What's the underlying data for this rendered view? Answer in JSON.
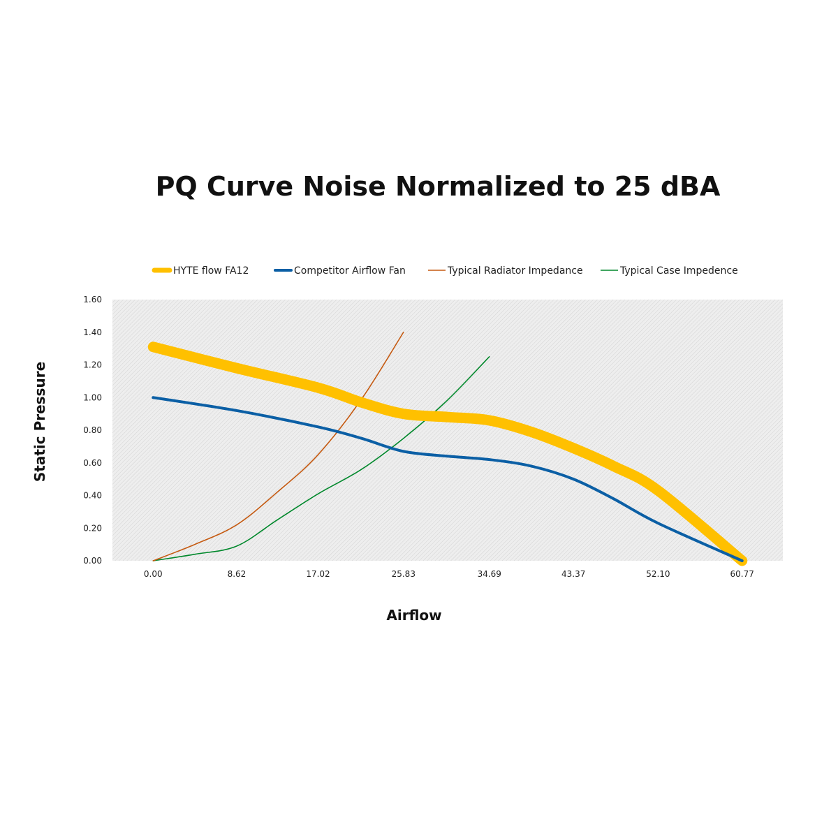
{
  "colors": {
    "hyte": "#FFC000",
    "competitor": "#0B5FA5",
    "radiator": "#C55A11",
    "case": "#00882B",
    "plot_background": "#EEEEEE",
    "hatch": "#CFCFCF",
    "text": "#111111"
  },
  "chart_data": {
    "type": "line",
    "title": "PQ Curve Noise Normalized to 25 dBA",
    "xlabel": "Airflow",
    "ylabel": "Static Pressure",
    "xlim": [
      -4.2,
      64.97
    ],
    "ylim": [
      0,
      1.6
    ],
    "x_ticks": [
      0.0,
      8.62,
      17.02,
      25.83,
      34.69,
      43.37,
      52.1,
      60.77
    ],
    "x_tick_labels": [
      "0.00",
      "8.62",
      "17.02",
      "25.83",
      "34.69",
      "43.37",
      "52.10",
      "60.77"
    ],
    "y_ticks": [
      0.0,
      0.2,
      0.4,
      0.6,
      0.8,
      1.0,
      1.2,
      1.4,
      1.6
    ],
    "y_tick_labels": [
      "0.00",
      "0.20",
      "0.40",
      "0.60",
      "0.80",
      "1.00",
      "1.20",
      "1.40",
      "1.60"
    ],
    "legend_position": "top",
    "grid": false,
    "series": [
      {
        "name": "HYTE flow FA12",
        "key": "hyte",
        "style": "thick",
        "x": [
          0.0,
          8.62,
          17.02,
          21.5,
          25.83,
          30.5,
          34.69,
          39.0,
          43.37,
          47.5,
          52.1,
          60.77
        ],
        "y": [
          1.31,
          1.18,
          1.06,
          0.97,
          0.9,
          0.88,
          0.86,
          0.79,
          0.69,
          0.58,
          0.43,
          0.0
        ]
      },
      {
        "name": "Competitor Airflow Fan",
        "key": "competitor",
        "style": "medium",
        "x": [
          0.0,
          8.62,
          17.02,
          21.5,
          25.83,
          30.5,
          34.69,
          39.0,
          43.37,
          47.5,
          52.1,
          60.77
        ],
        "y": [
          1.0,
          0.92,
          0.82,
          0.75,
          0.67,
          0.64,
          0.62,
          0.58,
          0.5,
          0.38,
          0.23,
          0.0
        ]
      },
      {
        "name": "Typical Radiator Impedance",
        "key": "radiator",
        "style": "thin",
        "x": [
          0.0,
          4.3,
          8.62,
          12.8,
          17.02,
          21.5,
          25.83
        ],
        "y": [
          0.0,
          0.1,
          0.22,
          0.42,
          0.65,
          0.99,
          1.4
        ]
      },
      {
        "name": "Typical Case Impedence",
        "key": "case",
        "style": "thin",
        "x": [
          0.0,
          4.3,
          8.62,
          12.8,
          17.02,
          21.5,
          25.83,
          30.3,
          34.69
        ],
        "y": [
          0.0,
          0.04,
          0.09,
          0.25,
          0.41,
          0.56,
          0.75,
          0.98,
          1.25
        ]
      }
    ]
  }
}
